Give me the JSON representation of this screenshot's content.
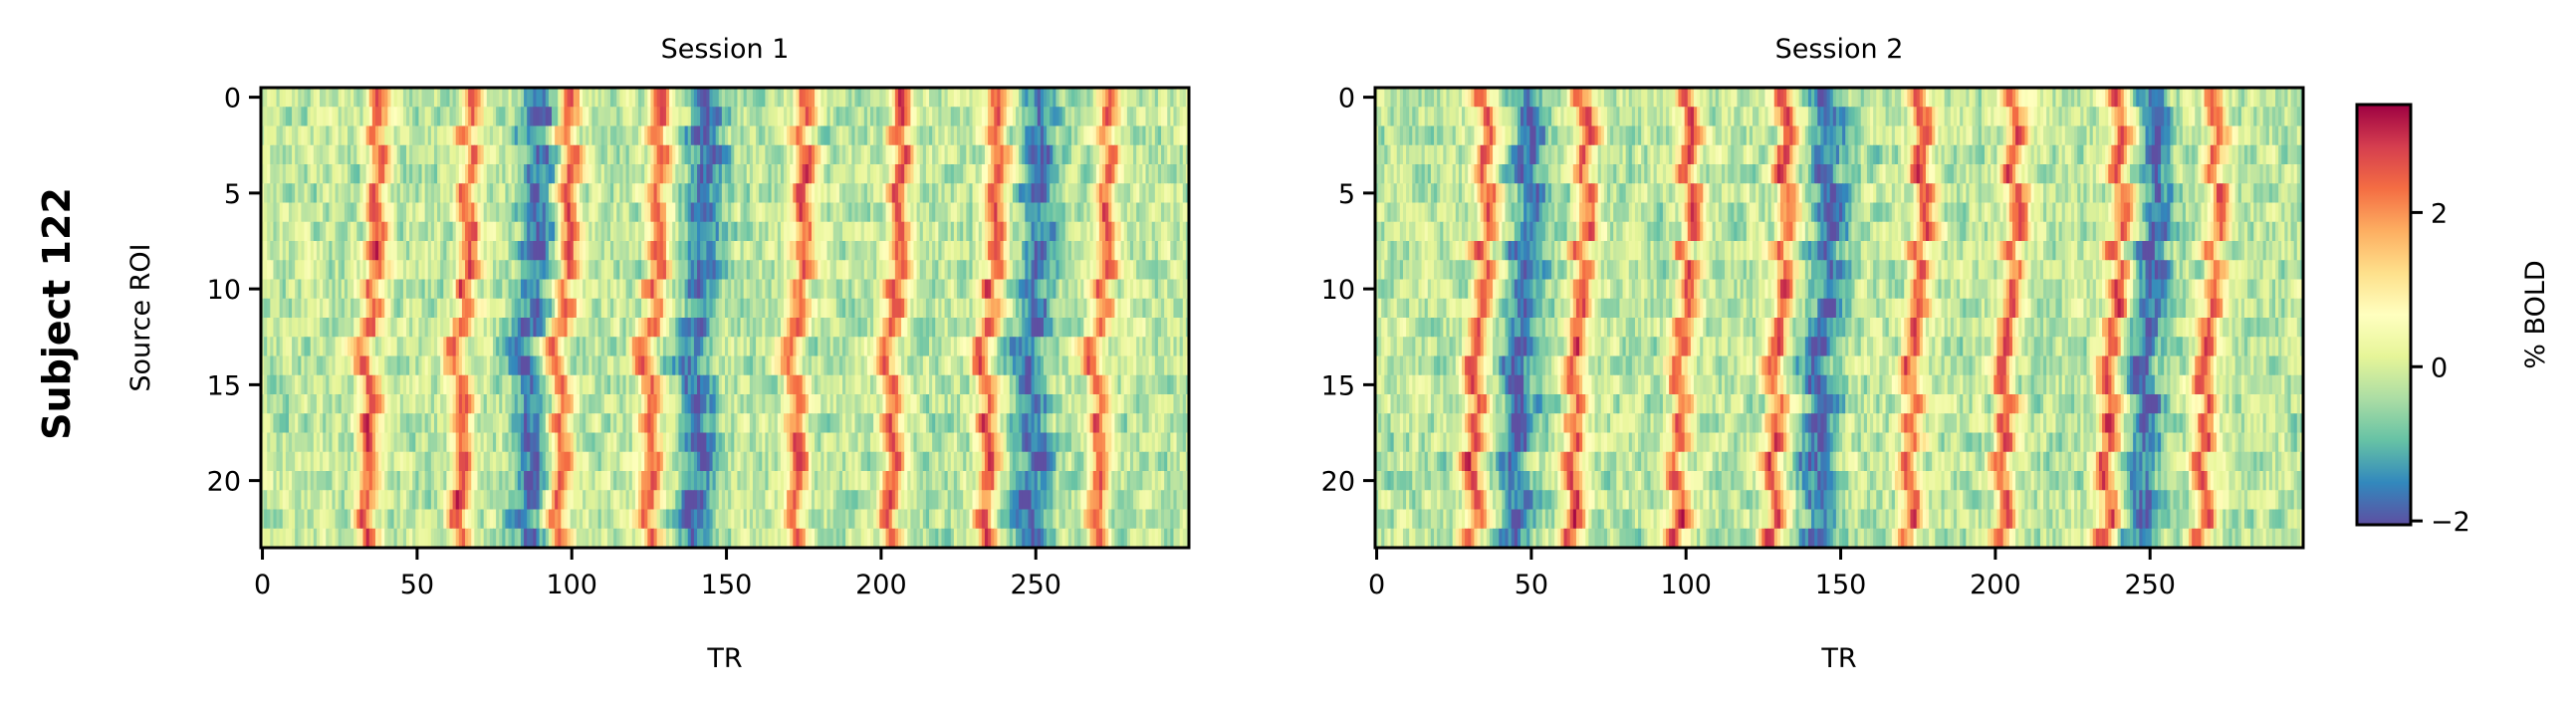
{
  "figure": {
    "row_label": "Subject 122"
  },
  "colorbar": {
    "label": "% BOLD",
    "colormap": "Spectral_r",
    "range": [
      -2.05,
      3.4
    ],
    "ticks": [
      -2,
      0,
      2
    ],
    "tick_labels": [
      "−2",
      "0",
      "2"
    ],
    "colors": [
      "#5e4fa2",
      "#3288bd",
      "#66c2a5",
      "#abdda4",
      "#e6f598",
      "#ffffbf",
      "#fee08b",
      "#fdae61",
      "#f46d43",
      "#d53e4f",
      "#9e0142"
    ]
  },
  "chart_data": [
    {
      "type": "heatmap",
      "title": "Session 1",
      "xlabel": "TR",
      "ylabel": "Source ROI",
      "n_rows": 24,
      "n_cols": 300,
      "xlim": [
        -0.5,
        299.5
      ],
      "ylim": [
        23.5,
        -0.5
      ],
      "xticks": [
        0,
        50,
        100,
        150,
        200,
        250
      ],
      "xtick_labels": [
        "0",
        "50",
        "100",
        "150",
        "200",
        "250"
      ],
      "yticks": [
        0,
        5,
        10,
        15,
        20
      ],
      "ytick_labels": [
        "0",
        "5",
        "10",
        "15",
        "20"
      ],
      "peak_trs": [
        36,
        66,
        98,
        127,
        174,
        205,
        236,
        272
      ],
      "trough_trs": [
        88,
        142,
        250
      ],
      "value_range": [
        -2.05,
        3.4
      ]
    },
    {
      "type": "heatmap",
      "title": "Session 2",
      "xlabel": "TR",
      "ylabel": "",
      "n_rows": 24,
      "n_cols": 300,
      "xlim": [
        -0.5,
        299.5
      ],
      "ylim": [
        23.5,
        -0.5
      ],
      "xticks": [
        0,
        50,
        100,
        150,
        200,
        250
      ],
      "xtick_labels": [
        "0",
        "50",
        "100",
        "150",
        "200",
        "250"
      ],
      "yticks": [
        0,
        5,
        10,
        15,
        20
      ],
      "ytick_labels": [
        "0",
        "5",
        "10",
        "15",
        "20"
      ],
      "peak_trs": [
        34,
        66,
        100,
        131,
        175,
        205,
        239,
        270
      ],
      "trough_trs": [
        48,
        145,
        250
      ],
      "value_range": [
        -2.05,
        3.4
      ]
    }
  ]
}
